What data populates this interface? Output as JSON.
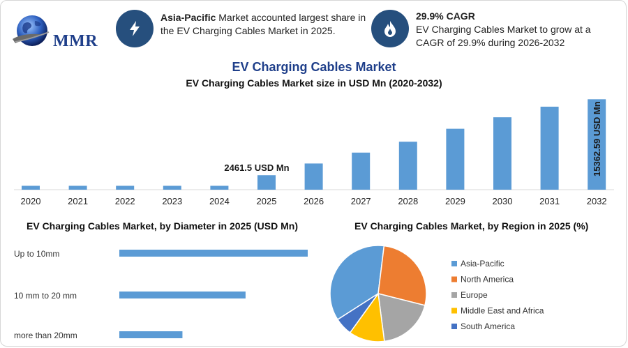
{
  "brand": {
    "logo_text": "MMR"
  },
  "header": {
    "info1": {
      "bold": "Asia-Pacific",
      "text": " Market accounted largest share in the EV Charging Cables Market in 2025.",
      "icon": "lightning-icon"
    },
    "info2": {
      "bold": "29.9% CAGR",
      "text": "EV Charging Cables Market to grow at a CAGR of 29.9% during 2026-2032",
      "icon": "flame-drop-icon"
    }
  },
  "title": "EV Charging Cables Market",
  "colors": {
    "bar": "#5b9bd5",
    "dark_blue": "#264f7d",
    "title_blue": "#1f3f8a"
  },
  "chart_data": [
    {
      "type": "bar",
      "title": "EV Charging Cables Market size in USD Mn (2020-2032)",
      "categories": [
        "2020",
        "2021",
        "2022",
        "2023",
        "2024",
        "2025",
        "2026",
        "2027",
        "2028",
        "2029",
        "2030",
        "2031",
        "2032"
      ],
      "values": [
        660,
        660,
        660,
        660,
        660,
        2461.5,
        4450,
        6300,
        8150,
        10350,
        12300,
        14100,
        15362.59
      ],
      "annotations": [
        {
          "category": "2025",
          "text": "2461.5 USD Mn"
        },
        {
          "category": "2032",
          "text": "15362.59 USD Mn"
        }
      ],
      "ylim": [
        0,
        15400
      ]
    },
    {
      "type": "bar",
      "orientation": "horizontal",
      "title": "EV Charging Cables Market, by Diameter in 2025 (USD Mn)",
      "categories": [
        "Up to 10mm",
        "10 mm to 20 mm",
        "more than 20mm"
      ],
      "values": [
        1000,
        670,
        335
      ],
      "xlim": [
        0,
        1000
      ]
    },
    {
      "type": "pie",
      "title": "EV Charging Cables Market, by Region in 2025 (%)",
      "labels": [
        "Asia-Pacific",
        "North America",
        "Europe",
        "Middle East and Africa",
        "South America"
      ],
      "values": [
        36,
        27,
        19,
        12,
        6
      ],
      "colors": [
        "#5b9bd5",
        "#ed7d31",
        "#a5a5a5",
        "#ffc000",
        "#4472c4"
      ],
      "legend_position": "right"
    }
  ]
}
